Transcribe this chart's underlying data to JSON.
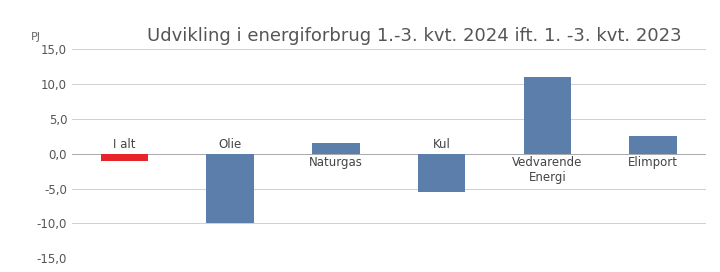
{
  "title": "Udvikling i energiforbrug 1.-3. kvt. 2024 ift. 1. -3. kvt. 2023",
  "ylabel": "PJ",
  "categories": [
    "I alt",
    "Olie",
    "Naturgas",
    "Kul",
    "Vedvarende\nEnergi",
    "Elimport"
  ],
  "values": [
    -1.0,
    -10.0,
    1.5,
    -5.5,
    11.0,
    2.5
  ],
  "bar_colors": [
    "#e8232a",
    "#5b7faa",
    "#5b7faa",
    "#5b7faa",
    "#5b7faa",
    "#5b7faa"
  ],
  "ylim": [
    -15,
    15
  ],
  "yticks": [
    -15.0,
    -10.0,
    -5.0,
    0.0,
    5.0,
    10.0,
    15.0
  ],
  "ytick_labels": [
    "-15,0",
    "-10,0",
    "-5,0",
    "0,0",
    "5,0",
    "10,0",
    "15,0"
  ],
  "background_color": "#ffffff",
  "bar_width": 0.45,
  "title_fontsize": 13,
  "label_fontsize": 8.5,
  "ylabel_fontsize": 8
}
